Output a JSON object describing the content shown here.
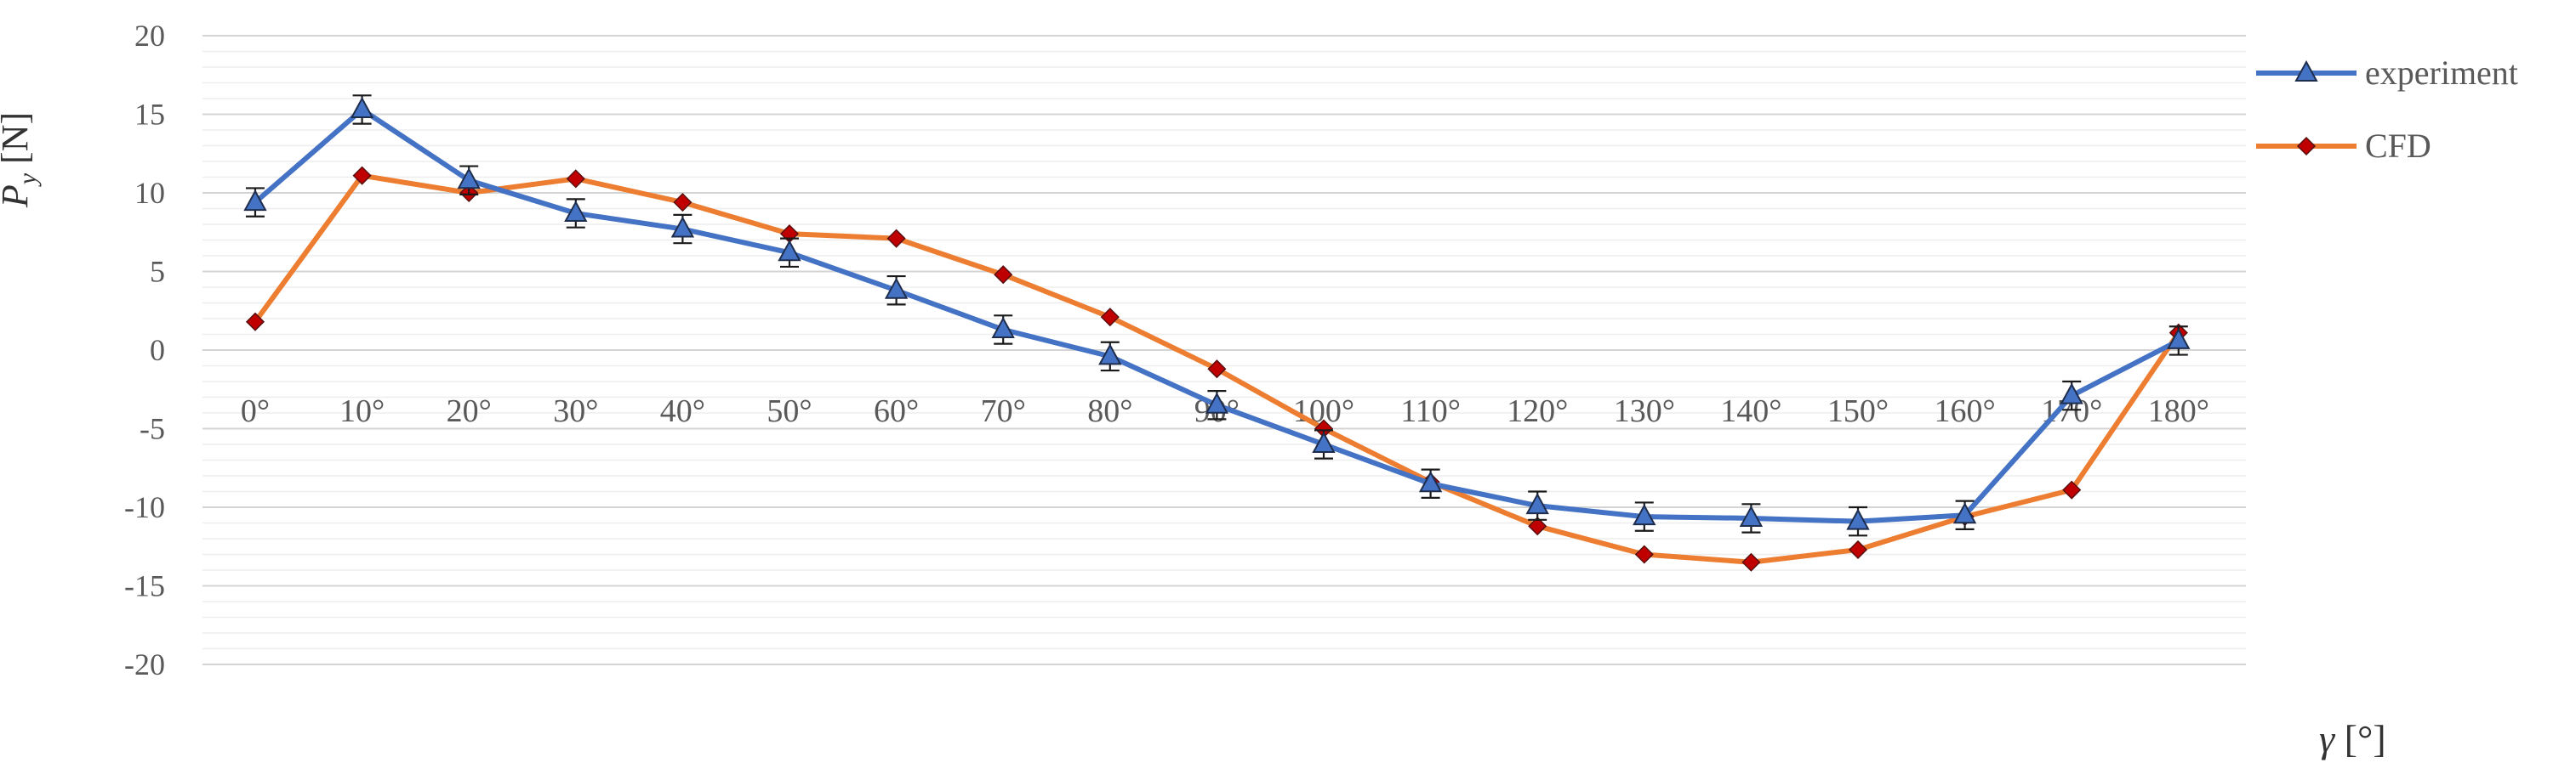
{
  "chart_data": {
    "type": "line",
    "xlabel": {
      "symbol": "γ",
      "unit": "[°]"
    },
    "ylabel": {
      "symbol": "P",
      "subscript": "y",
      "unit": "[N]"
    },
    "ylim": [
      -20,
      20
    ],
    "yticks": [
      "20",
      "15",
      "10",
      "5",
      "0",
      "-5",
      "-10",
      "-15",
      "-20"
    ],
    "categories": [
      "0°",
      "10°",
      "20°",
      "30°",
      "40°",
      "50°",
      "60°",
      "70°",
      "80°",
      "90°",
      "100°",
      "110°",
      "120°",
      "130°",
      "140°",
      "150°",
      "160°",
      "170°",
      "180°"
    ],
    "grid": "horizontal",
    "legend_position": "top-right",
    "series": [
      {
        "name": "experiment",
        "color": "#4472C4",
        "marker": "triangle",
        "error_bar": 0.9,
        "values": [
          9.4,
          15.3,
          10.8,
          8.7,
          7.7,
          6.2,
          3.8,
          1.3,
          -0.4,
          -3.5,
          -6.0,
          -8.5,
          -9.9,
          -10.6,
          -10.7,
          -10.9,
          -10.5,
          -2.9,
          0.6
        ]
      },
      {
        "name": "CFD",
        "color": "#ED7D31",
        "marker": "diamond",
        "marker_color": "#C00000",
        "values": [
          1.8,
          11.1,
          10.0,
          10.9,
          9.4,
          7.4,
          7.1,
          4.8,
          2.1,
          -1.2,
          -5.0,
          -8.4,
          -11.2,
          -13.0,
          -13.5,
          -12.7,
          -10.6,
          -8.9,
          1.1
        ]
      }
    ]
  }
}
